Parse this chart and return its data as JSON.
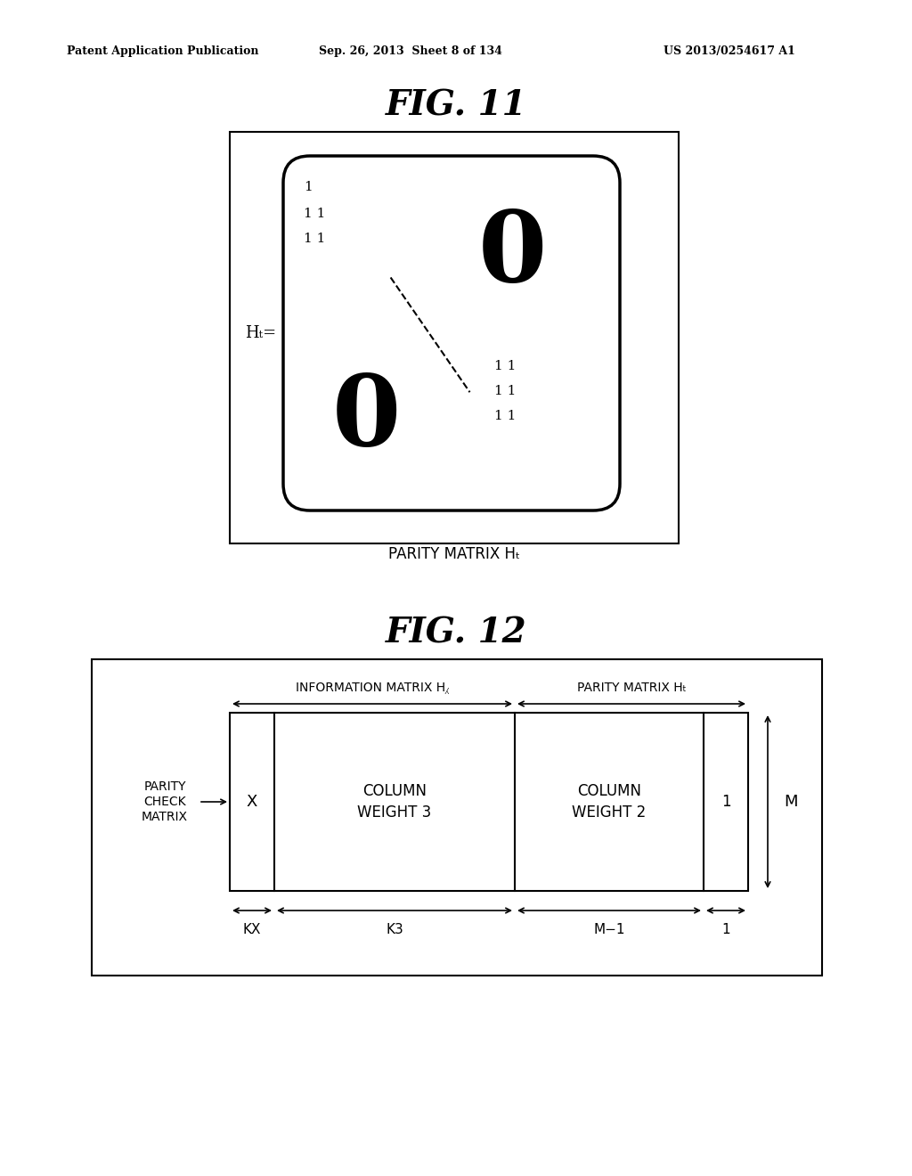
{
  "bg_color": "#ffffff",
  "header_text": "Patent Application Publication",
  "header_date": "Sep. 26, 2013  Sheet 8 of 134",
  "header_patent": "US 2013/0254617 A1",
  "fig11_title": "FIG. 11",
  "fig12_title": "FIG. 12",
  "fig11_ht_label": "Hₜ=",
  "fig11_caption": "PARITY MATRIX Hₜ",
  "fig12_info_label": "INFORMATION MATRIX H⁁",
  "fig12_parity_label": "PARITY MATRIX Hₜ",
  "fig12_pcm_label": "PARITY\nCHECK\nMATRIX",
  "fig12_x": "X",
  "fig12_cw3": "COLUMN\nWEIGHT 3",
  "fig12_cw2": "COLUMN\nWEIGHT 2",
  "fig12_one": "1",
  "fig12_M": "M",
  "fig12_kx": "KX",
  "fig12_k3": "K3",
  "fig12_m1": "M−1",
  "fig12_1": "1"
}
